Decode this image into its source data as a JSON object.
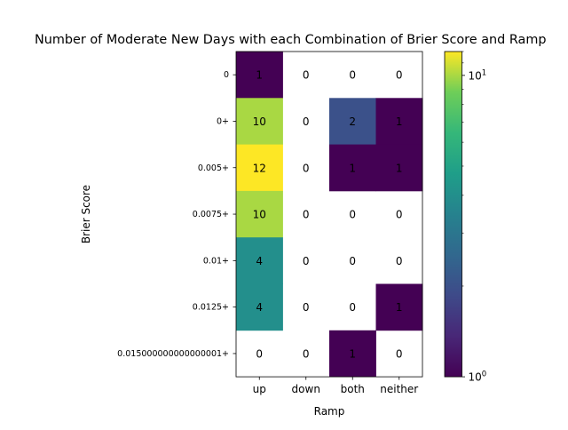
{
  "chart_data": {
    "type": "heatmap",
    "title": "Number of Moderate New Days with each Combination of Brier Score and Ramp",
    "xlabel": "Ramp",
    "ylabel": "Brier Score",
    "x_categories": [
      "up",
      "down",
      "both",
      "neither"
    ],
    "y_categories": [
      "0",
      "0+",
      "0.005+",
      "0.0075+",
      "0.01+",
      "0.0125+",
      "0.015000000000000001+"
    ],
    "values": [
      [
        1,
        0,
        0,
        0
      ],
      [
        10,
        0,
        2,
        1
      ],
      [
        12,
        0,
        1,
        1
      ],
      [
        10,
        0,
        0,
        0
      ],
      [
        4,
        0,
        0,
        0
      ],
      [
        4,
        0,
        0,
        1
      ],
      [
        0,
        0,
        1,
        0
      ]
    ],
    "zero_cells": "blank (white, masked by log scale)",
    "colormap": "viridis",
    "color_scale": "log",
    "colorbar": {
      "vmin": 1,
      "vmax": 12,
      "tick_labels": [
        "10^0",
        "10^1"
      ]
    }
  }
}
